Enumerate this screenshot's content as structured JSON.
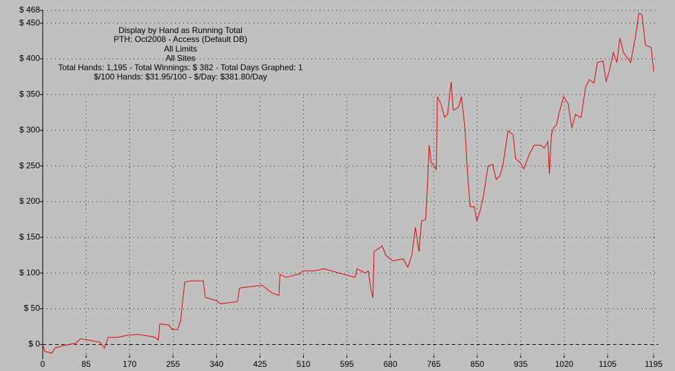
{
  "chart_data": {
    "type": "line",
    "title": "Display by Hand as Running Total",
    "subtitle": [
      "PTH: Oct2008 - Access (Default DB)",
      "All Limits",
      "All Sites",
      "Total Hands: 1,195 - Total Winnings: $ 382 - Total Days Graphed: 1",
      "$/100 Hands: $31.95/100 - $/Day: $381.80/Day"
    ],
    "x": [
      0,
      4,
      18,
      24,
      38,
      65,
      74,
      92,
      112,
      121,
      128,
      146,
      166,
      186,
      206,
      220,
      226,
      229,
      247,
      253,
      264,
      270,
      274,
      278,
      287,
      314,
      318,
      341,
      348,
      381,
      385,
      408,
      429,
      449,
      462,
      464,
      476,
      503,
      509,
      530,
      550,
      570,
      590,
      611,
      615,
      631,
      637,
      642,
      646,
      648,
      664,
      671,
      685,
      705,
      714,
      722,
      729,
      736,
      741,
      749,
      753,
      756,
      760,
      765,
      770,
      772,
      779,
      786,
      792,
      799,
      803,
      813,
      819,
      826,
      830,
      836,
      844,
      849,
      856,
      862,
      871,
      880,
      887,
      894,
      900,
      910,
      920,
      925,
      934,
      941,
      951,
      961,
      974,
      981,
      988,
      991,
      995,
      999,
      1005,
      1011,
      1019,
      1028,
      1035,
      1042,
      1053,
      1062,
      1069,
      1078,
      1085,
      1096,
      1102,
      1109,
      1116,
      1123,
      1129,
      1136,
      1150,
      1159,
      1166,
      1172,
      1179,
      1190,
      1194,
      1195
    ],
    "series": [
      {
        "color": "#e00000",
        "values": [
          0,
          -10,
          -12,
          -5,
          -2,
          2,
          8,
          6,
          3,
          -5,
          10,
          10,
          13,
          14,
          12,
          10,
          6,
          29,
          27,
          21,
          21,
          34,
          63,
          87,
          89,
          89,
          66,
          61,
          57,
          60,
          79,
          81,
          83,
          72,
          69,
          98,
          94,
          99,
          103,
          103,
          106,
          102,
          98,
          94,
          106,
          100,
          103,
          77,
          65,
          130,
          138,
          125,
          117,
          120,
          108,
          125,
          164,
          130,
          173,
          175,
          229,
          279,
          255,
          250,
          245,
          347,
          337,
          318,
          323,
          368,
          328,
          332,
          347,
          303,
          250,
          193,
          193,
          173,
          188,
          207,
          250,
          252,
          231,
          236,
          250,
          299,
          294,
          260,
          255,
          246,
          265,
          279,
          279,
          275,
          284,
          239,
          294,
          303,
          308,
          327,
          347,
          337,
          303,
          322,
          318,
          361,
          371,
          366,
          395,
          397,
          368,
          385,
          409,
          395,
          429,
          409,
          395,
          429,
          464,
          462,
          419,
          416,
          390,
          382
        ]
      }
    ],
    "xlim": [
      0,
      1195
    ],
    "xticks": [
      0,
      85,
      170,
      255,
      340,
      425,
      510,
      595,
      680,
      765,
      850,
      935,
      1020,
      1105,
      1195
    ],
    "ylim": [
      -15,
      468
    ],
    "yticks": [
      {
        "value": 0,
        "label": "$ 0"
      },
      {
        "value": 50,
        "label": "$ 50"
      },
      {
        "value": 100,
        "label": "$ 100"
      },
      {
        "value": 150,
        "label": "$ 150"
      },
      {
        "value": 200,
        "label": "$ 200"
      },
      {
        "value": 250,
        "label": "$ 250"
      },
      {
        "value": 300,
        "label": "$ 300"
      },
      {
        "value": 350,
        "label": "$ 350"
      },
      {
        "value": 400,
        "label": "$ 400"
      },
      {
        "value": 450,
        "label": "$ 450"
      },
      {
        "value": 468,
        "label": "$ 468"
      }
    ],
    "grid": true
  }
}
